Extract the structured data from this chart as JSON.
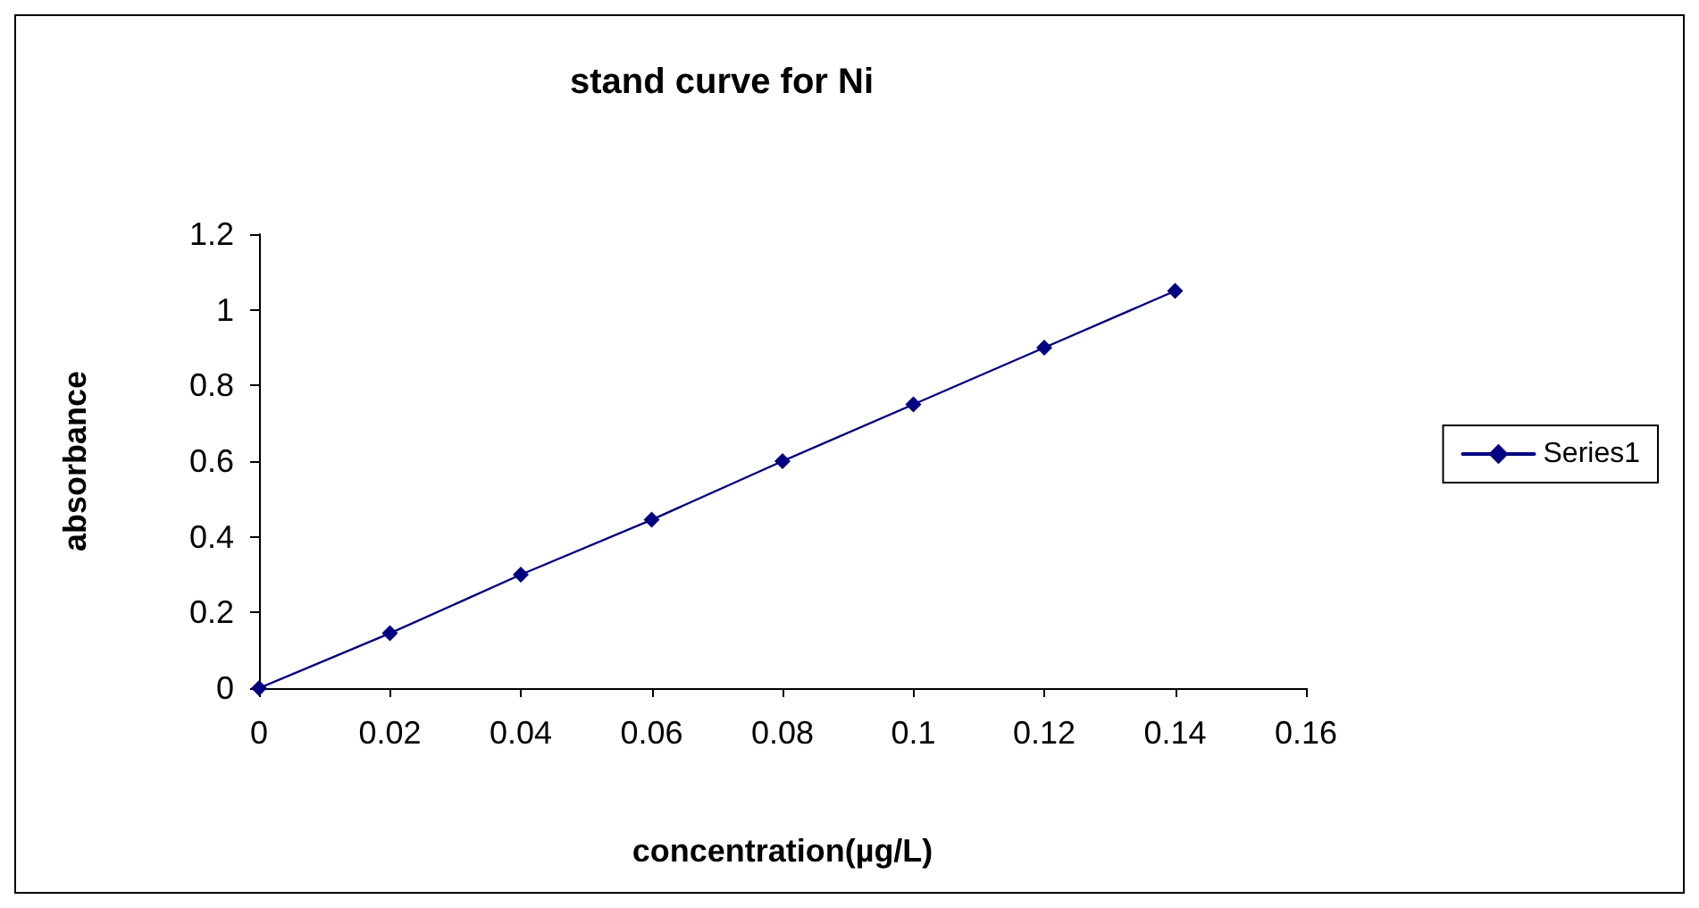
{
  "chart_data": {
    "type": "line",
    "title": "stand curve for Ni",
    "xlabel": "concentration(µg/L)",
    "ylabel": "absorbance",
    "x": [
      0,
      0.02,
      0.04,
      0.06,
      0.08,
      0.1,
      0.12,
      0.14
    ],
    "series": [
      {
        "name": "Series1",
        "color": "#000080",
        "values": [
          0,
          0.145,
          0.3,
          0.445,
          0.6,
          0.75,
          0.9,
          1.05
        ]
      }
    ],
    "xlim": [
      0,
      0.16
    ],
    "xticks": [
      0,
      0.02,
      0.04,
      0.06,
      0.08,
      0.1,
      0.12,
      0.14,
      0.16
    ],
    "ylim": [
      0,
      1.2
    ],
    "yticks": [
      0,
      0.2,
      0.4,
      0.6,
      0.8,
      1,
      1.2
    ],
    "grid": false,
    "legend": "right",
    "marker": "diamond",
    "line_style": "solid"
  }
}
